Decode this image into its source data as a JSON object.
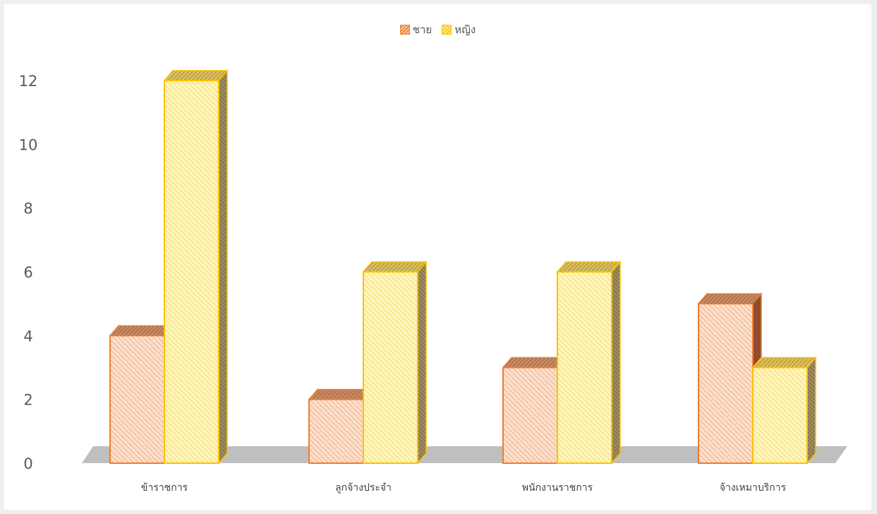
{
  "chart_data": {
    "type": "bar",
    "style": "3d-clustered-column-hatched",
    "categories": [
      "ข้าราชการ",
      "ลูกจ้างประจำ",
      "พนักงานราชการ",
      "จ้างเหมาบริการ"
    ],
    "series": [
      {
        "name": "ชาย",
        "values": [
          4,
          2,
          3,
          5
        ],
        "color": "#ED7D31",
        "fill": "#F8CBAD"
      },
      {
        "name": "หญิง",
        "values": [
          12,
          6,
          6,
          3
        ],
        "color": "#FFC000",
        "fill": "#FFF0A0"
      }
    ],
    "yticks": [
      "0",
      "2",
      "4",
      "6",
      "8",
      "10",
      "12"
    ],
    "ylim": [
      0,
      12
    ],
    "legend_position": "top-center",
    "grid": false,
    "floor_color": "#BFBFBF"
  }
}
